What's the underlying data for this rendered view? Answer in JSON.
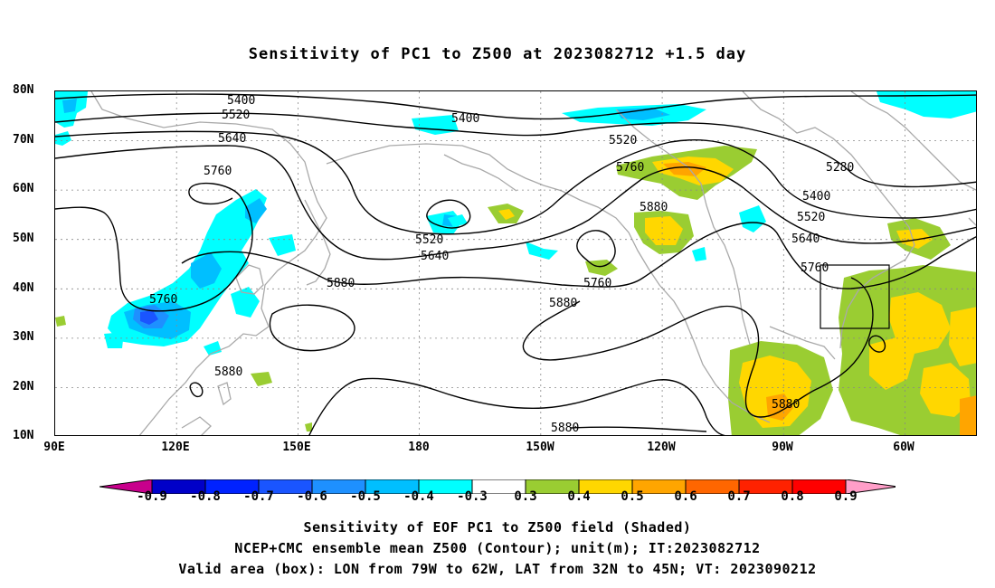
{
  "title": "Sensitivity of PC1 to Z500 at 2023082712 +1.5 day",
  "lat_ticks": [
    "80N",
    "70N",
    "60N",
    "50N",
    "40N",
    "30N",
    "20N",
    "10N"
  ],
  "lon_ticks": [
    "90E",
    "120E",
    "150E",
    "180",
    "150W",
    "120W",
    "90W",
    "60W"
  ],
  "colorbar": {
    "labels": [
      "-0.9",
      "-0.8",
      "-0.7",
      "-0.6",
      "-0.5",
      "-0.4",
      "-0.3",
      "0.3",
      "0.4",
      "0.5",
      "0.6",
      "0.7",
      "0.8",
      "0.9"
    ],
    "colors": [
      "#c8008c",
      "#0000c8",
      "#0022ff",
      "#1a55ff",
      "#1e90ff",
      "#00bfff",
      "#00ffff",
      "#ffffff",
      "#9acd32",
      "#ffd700",
      "#ffa500",
      "#ff6600",
      "#ff2200",
      "#ff0000",
      "#ff9ec8"
    ]
  },
  "contour_labels": [
    {
      "text": "5400"
    },
    {
      "text": "5520"
    },
    {
      "text": "5640"
    },
    {
      "text": "5760"
    },
    {
      "text": "5400"
    },
    {
      "text": "5520"
    },
    {
      "text": "5760"
    },
    {
      "text": "5280"
    },
    {
      "text": "5400"
    },
    {
      "text": "5520"
    },
    {
      "text": "5640"
    },
    {
      "text": "5760"
    },
    {
      "text": "5880"
    },
    {
      "text": "5520"
    },
    {
      "text": "5640"
    },
    {
      "text": "5880"
    },
    {
      "text": "5760"
    },
    {
      "text": "5880"
    },
    {
      "text": "5760"
    },
    {
      "text": "5880"
    },
    {
      "text": "5880"
    },
    {
      "text": "5880"
    }
  ],
  "caption": {
    "line1": "Sensitivity of EOF PC1 to Z500 field (Shaded)",
    "line2": "NCEP+CMC ensemble mean Z500 (Contour); unit(m); IT:2023082712",
    "line3": "Valid area (box): LON from 79W to 62W, LAT from 32N to 45N; VT: 2023090212"
  }
}
